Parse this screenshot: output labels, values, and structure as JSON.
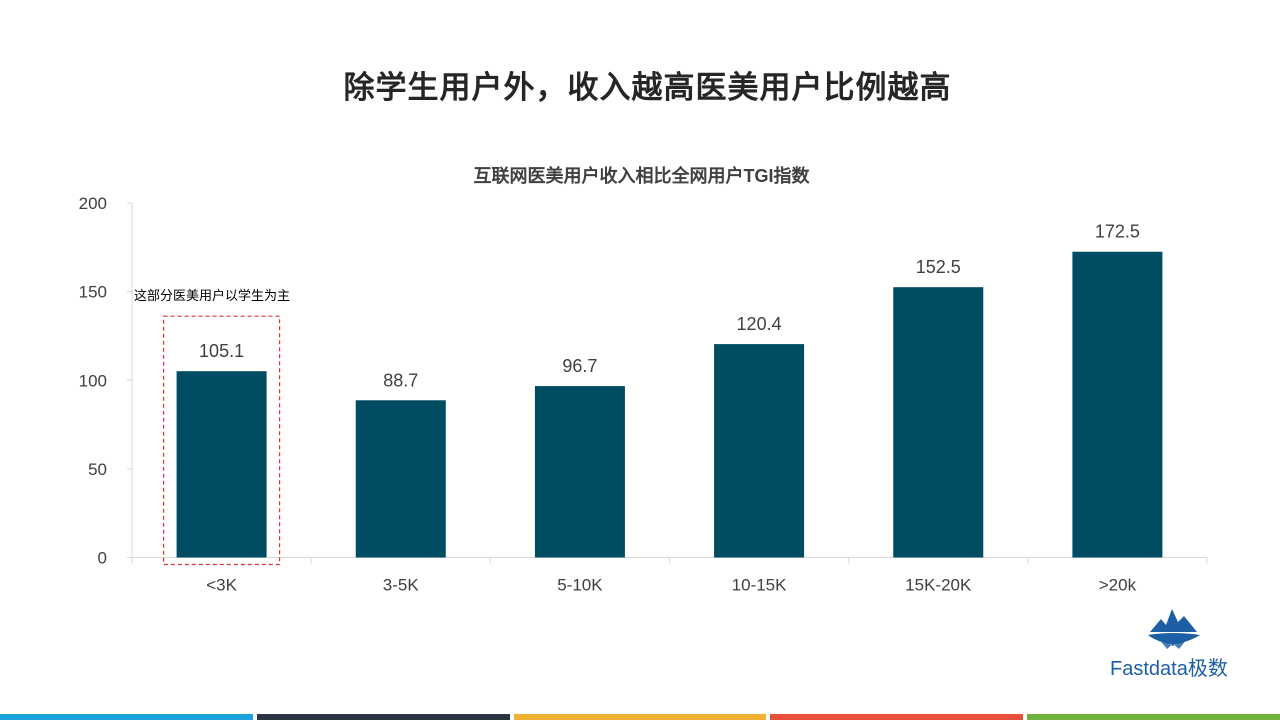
{
  "page": {
    "title": "除学生用户外，收入越高医美用户比例越高"
  },
  "chart_data": {
    "type": "bar",
    "title": "互联网医美用户收入相比全网用户TGI指数",
    "categories": [
      "<3K",
      "3-5K",
      "5-10K",
      "10-15K",
      "15K-20K",
      ">20k"
    ],
    "values": [
      105.1,
      88.7,
      96.7,
      120.4,
      152.5,
      172.5
    ],
    "value_labels": [
      "105.1",
      "88.7",
      "96.7",
      "120.4",
      "152.5",
      "172.5"
    ],
    "ylim": [
      0,
      200
    ],
    "yticks": [
      0,
      50,
      100,
      150,
      200
    ],
    "xlabel": "",
    "ylabel": "",
    "grid": false,
    "bar_color": "#004c63",
    "annotation": {
      "text": "这部分医美用户以学生为主",
      "category": "<3K",
      "box_color": "#e0303a"
    }
  },
  "logo": {
    "text": "Fastdata极数",
    "color": "#1d5fa5"
  },
  "footer": {
    "stripe_colors": [
      "#1aa3dc",
      "#2b3440",
      "#f2b134",
      "#e8503a",
      "#6fb23e"
    ]
  }
}
